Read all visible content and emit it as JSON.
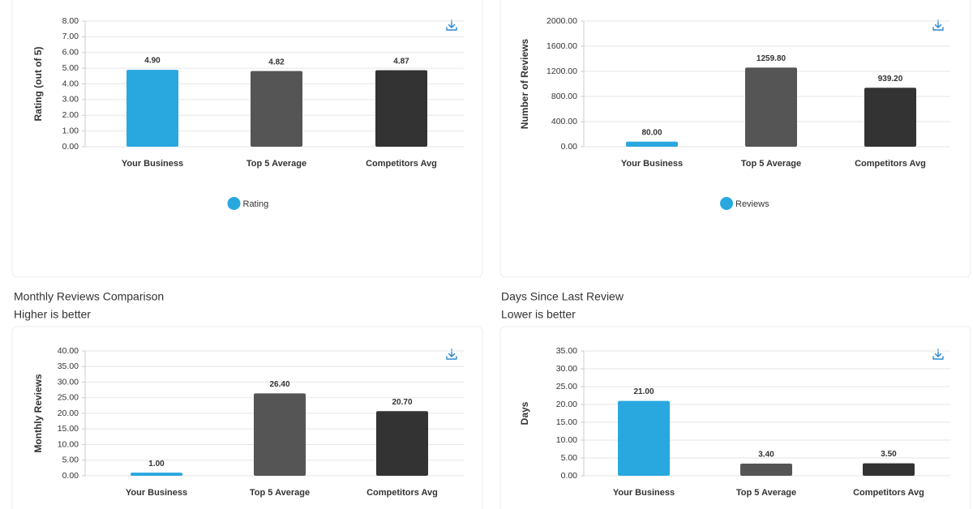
{
  "chart_data": [
    {
      "type": "bar",
      "y_label": "Rating (out of 5)",
      "categories": [
        "Your Business",
        "Top 5 Average",
        "Competitors Avg"
      ],
      "series": [
        {
          "name": "Rating",
          "color": "#29a8e0",
          "colors": [
            "#29a8e0",
            "#555555",
            "#333333"
          ],
          "values": [
            4.9,
            4.82,
            4.87
          ],
          "value_labels": [
            "4.90",
            "4.82",
            "4.87"
          ]
        }
      ],
      "ylim": [
        0,
        8
      ],
      "yticks": [
        {
          "value": 0,
          "label": "0.00"
        },
        {
          "value": 1,
          "label": "1.00"
        },
        {
          "value": 2,
          "label": "2.00"
        },
        {
          "value": 3,
          "label": "3.00"
        },
        {
          "value": 4,
          "label": "4.00"
        },
        {
          "value": 5,
          "label": "5.00"
        },
        {
          "value": 6,
          "label": "6.00"
        },
        {
          "value": 7,
          "label": "7.00"
        },
        {
          "value": 8,
          "label": "8.00"
        }
      ],
      "grid": true
    },
    {
      "type": "bar",
      "y_label": "Number of Reviews",
      "categories": [
        "Your Business",
        "Top 5 Average",
        "Competitors Avg"
      ],
      "series": [
        {
          "name": "Reviews",
          "color": "#29a8e0",
          "colors": [
            "#29a8e0",
            "#555555",
            "#333333"
          ],
          "values": [
            80,
            1259.8,
            939.2
          ],
          "value_labels": [
            "80.00",
            "1259.80",
            "939.20"
          ]
        }
      ],
      "ylim": [
        0,
        2000
      ],
      "yticks": [
        {
          "value": 0,
          "label": "0.00"
        },
        {
          "value": 400,
          "label": "400.00"
        },
        {
          "value": 800,
          "label": "800.00"
        },
        {
          "value": 1200,
          "label": "1200.00"
        },
        {
          "value": 1600,
          "label": "1600.00"
        },
        {
          "value": 2000,
          "label": "2000.00"
        }
      ],
      "grid": true
    },
    {
      "type": "bar",
      "title": "Monthly Reviews Comparison",
      "subtitle": "Higher is better",
      "y_label": "Monthly Reviews",
      "categories": [
        "Your Business",
        "Top 5 Average",
        "Competitors Avg"
      ],
      "series": [
        {
          "colors": [
            "#29a8e0",
            "#555555",
            "#333333"
          ],
          "values": [
            1,
            26.4,
            20.7
          ],
          "value_labels": [
            "1.00",
            "26.40",
            "20.70"
          ]
        }
      ],
      "ylim": [
        0,
        40
      ],
      "yticks": [
        {
          "value": 0,
          "label": "0.00"
        },
        {
          "value": 5,
          "label": "5.00"
        },
        {
          "value": 10,
          "label": "10.00"
        },
        {
          "value": 15,
          "label": "15.00"
        },
        {
          "value": 20,
          "label": "20.00"
        },
        {
          "value": 25,
          "label": "25.00"
        },
        {
          "value": 30,
          "label": "30.00"
        },
        {
          "value": 35,
          "label": "35.00"
        },
        {
          "value": 40,
          "label": "40.00"
        }
      ],
      "grid": true
    },
    {
      "type": "bar",
      "title": "Days Since Last Review",
      "subtitle": "Lower is better",
      "y_label": "Days",
      "categories": [
        "Your Business",
        "Top 5 Average",
        "Competitors Avg"
      ],
      "series": [
        {
          "colors": [
            "#29a8e0",
            "#555555",
            "#333333"
          ],
          "values": [
            21,
            3.4,
            3.5
          ],
          "value_labels": [
            "21.00",
            "3.40",
            "3.50"
          ]
        }
      ],
      "ylim": [
        0,
        35
      ],
      "yticks": [
        {
          "value": 0,
          "label": "0.00"
        },
        {
          "value": 5,
          "label": "5.00"
        },
        {
          "value": 10,
          "label": "10.00"
        },
        {
          "value": 15,
          "label": "15.00"
        },
        {
          "value": 20,
          "label": "20.00"
        },
        {
          "value": 25,
          "label": "25.00"
        },
        {
          "value": 30,
          "label": "30.00"
        },
        {
          "value": 35,
          "label": "35.00"
        }
      ],
      "grid": true
    }
  ]
}
